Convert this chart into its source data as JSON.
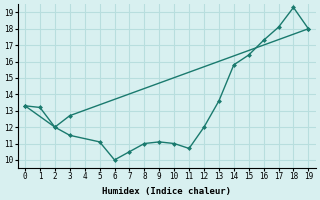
{
  "line1_x": [
    0,
    1,
    2,
    3,
    5,
    6,
    7,
    8,
    9,
    10,
    11,
    12,
    13,
    14,
    15,
    16,
    17,
    18,
    19
  ],
  "line1_y": [
    13.3,
    13.2,
    12.0,
    11.5,
    11.1,
    10.0,
    10.5,
    11.0,
    11.1,
    11.0,
    10.7,
    12.0,
    13.6,
    15.8,
    16.4,
    17.3,
    18.1,
    19.3,
    18.0
  ],
  "line2_x": [
    0,
    2,
    3,
    19
  ],
  "line2_y": [
    13.3,
    12.0,
    12.7,
    18.0
  ],
  "color": "#1a7a6e",
  "bg_color": "#d8f0f0",
  "grid_color": "#b8dede",
  "xlabel": "Humidex (Indice chaleur)",
  "xlim": [
    -0.5,
    19.5
  ],
  "ylim": [
    9.5,
    19.5
  ],
  "xticks": [
    0,
    1,
    2,
    3,
    4,
    5,
    6,
    7,
    8,
    9,
    10,
    11,
    12,
    13,
    14,
    15,
    16,
    17,
    18,
    19
  ],
  "yticks": [
    10,
    11,
    12,
    13,
    14,
    15,
    16,
    17,
    18,
    19
  ]
}
